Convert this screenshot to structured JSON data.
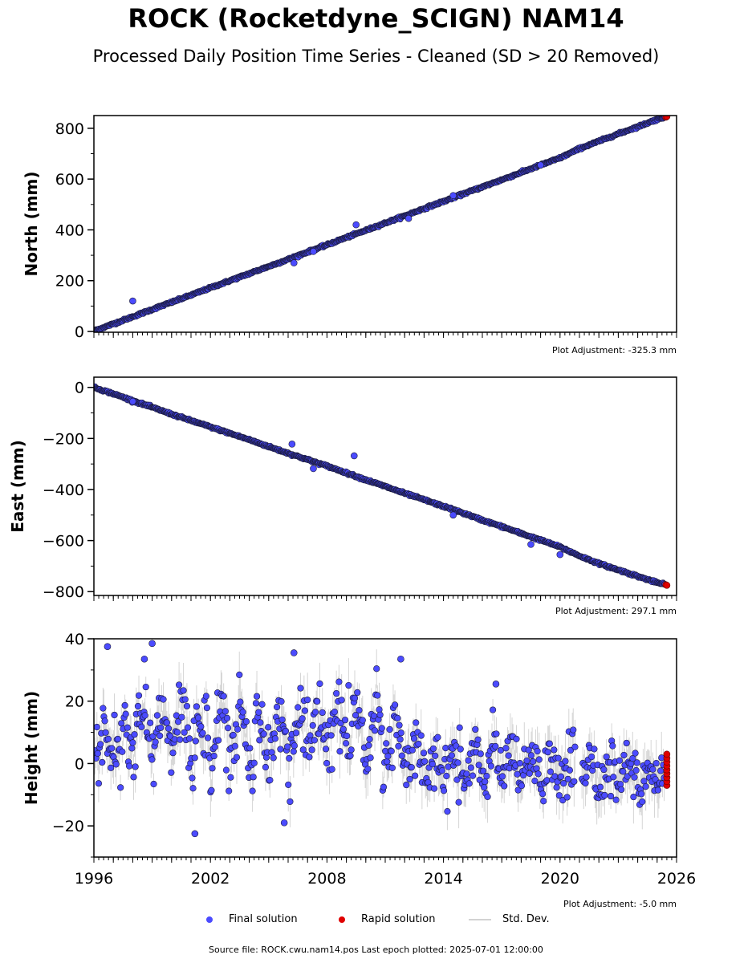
{
  "title": "ROCK (Rocketdyne_SCIGN) NAM14",
  "subtitle": "Processed Daily Position Time Series - Cleaned (SD > 20 Removed)",
  "legend": {
    "final": "Final solution",
    "rapid": "Rapid solution",
    "std": "Std. Dev."
  },
  "footer": "Source file: ROCK.cwu.nam14.pos  Last epoch plotted: 2025-07-01 12:00:00",
  "colors": {
    "final": "#4b4bff",
    "final_edge": "#1a1a3a",
    "rapid": "#e00000",
    "std": "#888888"
  },
  "chart_data": [
    {
      "type": "scatter",
      "ylabel": "North (mm)",
      "adjustment": "Plot Adjustment: -325.3 mm",
      "xlim": [
        1996,
        2026
      ],
      "ylim": [
        -3,
        850
      ],
      "yticks": [
        0,
        200,
        400,
        600,
        800
      ],
      "ytick_labels": [
        "0",
        "200",
        "400",
        "600",
        "800"
      ],
      "series": [
        {
          "name": "Final solution",
          "x": [
            1996.0,
            1997.0,
            1998.0,
            1999.0,
            2000.0,
            2001.0,
            2002.0,
            2003.0,
            2004.0,
            2005.0,
            2006.0,
            2007.0,
            2008.0,
            2009.0,
            2010.0,
            2011.0,
            2012.0,
            2013.0,
            2014.0,
            2015.0,
            2016.0,
            2017.0,
            2018.0,
            2019.0,
            2020.0,
            2021.0,
            2022.0,
            2023.0,
            2024.0,
            2025.0,
            2025.4
          ],
          "y": [
            2,
            30,
            58,
            87,
            115,
            143,
            172,
            200,
            228,
            256,
            284,
            313,
            341,
            370,
            398,
            427,
            455,
            484,
            512,
            541,
            569,
            597,
            626,
            655,
            683,
            720,
            749,
            778,
            806,
            835,
            845
          ]
        },
        {
          "name": "Rapid solution",
          "x": [
            2025.45,
            2025.5
          ],
          "y": [
            844,
            846
          ]
        }
      ],
      "outliers": {
        "x": [
          1998.0,
          2006.3,
          2007.3,
          2009.5,
          2012.2,
          2014.5,
          2019.0
        ],
        "y": [
          120,
          270,
          315,
          420,
          445,
          535,
          655
        ]
      }
    },
    {
      "type": "scatter",
      "ylabel": "East (mm)",
      "adjustment": "Plot Adjustment: 297.1 mm",
      "xlim": [
        1996,
        2026
      ],
      "ylim": [
        -815,
        40
      ],
      "yticks": [
        0,
        -200,
        -400,
        -600,
        -800
      ],
      "ytick_labels": [
        "0",
        "−200",
        "−400",
        "−600",
        "−800"
      ],
      "series": [
        {
          "name": "Final solution",
          "x": [
            1996.0,
            1997.0,
            1998.0,
            1999.0,
            2000.0,
            2001.0,
            2002.0,
            2003.0,
            2004.0,
            2005.0,
            2006.0,
            2007.0,
            2008.0,
            2009.0,
            2010.0,
            2011.0,
            2012.0,
            2013.0,
            2014.0,
            2015.0,
            2016.0,
            2017.0,
            2018.0,
            2019.0,
            2020.0,
            2021.0,
            2022.0,
            2023.0,
            2024.0,
            2025.0,
            2025.4
          ],
          "y": [
            0,
            -25,
            -52,
            -78,
            -105,
            -130,
            -155,
            -180,
            -205,
            -232,
            -258,
            -283,
            -308,
            -335,
            -362,
            -388,
            -415,
            -440,
            -466,
            -492,
            -520,
            -545,
            -572,
            -598,
            -625,
            -660,
            -690,
            -715,
            -740,
            -765,
            -772
          ]
        },
        {
          "name": "Rapid solution",
          "x": [
            2025.45,
            2025.5
          ],
          "y": [
            -773,
            -775
          ]
        }
      ],
      "outliers": {
        "x": [
          1998.0,
          2006.2,
          2007.3,
          2009.4,
          2014.5,
          2018.5,
          2020.0
        ],
        "y": [
          -55,
          -222,
          -318,
          -268,
          -500,
          -615,
          -655
        ]
      }
    },
    {
      "type": "scatter",
      "ylabel": "Height (mm)",
      "adjustment": "Plot Adjustment: -5.0 mm",
      "xlim": [
        1996,
        2026
      ],
      "ylim": [
        -30,
        40
      ],
      "yticks": [
        40,
        20,
        0,
        -20
      ],
      "ytick_labels": [
        "40",
        "20",
        "0",
        "−20"
      ],
      "xticks": [
        1996,
        2002,
        2008,
        2014,
        2020,
        2026
      ],
      "xtick_labels": [
        "1996",
        "2002",
        "2008",
        "2014",
        "2020",
        "2026"
      ],
      "series": [
        {
          "name": "Final solution",
          "mean_by_period": {
            "x": [
              1996,
              1998,
              2000,
              2002,
              2004,
              2006,
              2008,
              2010,
              2012.2,
              2013,
              2016,
              2019,
              2021,
              2024,
              2025.4
            ],
            "y": [
              5,
              10,
              10,
              10,
              9,
              8,
              12,
              10,
              6,
              -2,
              0,
              -3,
              -2,
              -3,
              -3
            ]
          }
        },
        {
          "name": "Rapid solution",
          "x": [
            2025.45,
            2025.5
          ],
          "y": [
            3,
            -7
          ]
        }
      ],
      "outliers": {
        "x": [
          1996.7,
          1998.6,
          1999.0,
          2001.2,
          2006.3,
          2011.8,
          2005.8,
          2016.7
        ],
        "y": [
          37.5,
          33.5,
          38.5,
          -22.5,
          35.5,
          33.5,
          -19,
          25.5
        ]
      }
    }
  ]
}
